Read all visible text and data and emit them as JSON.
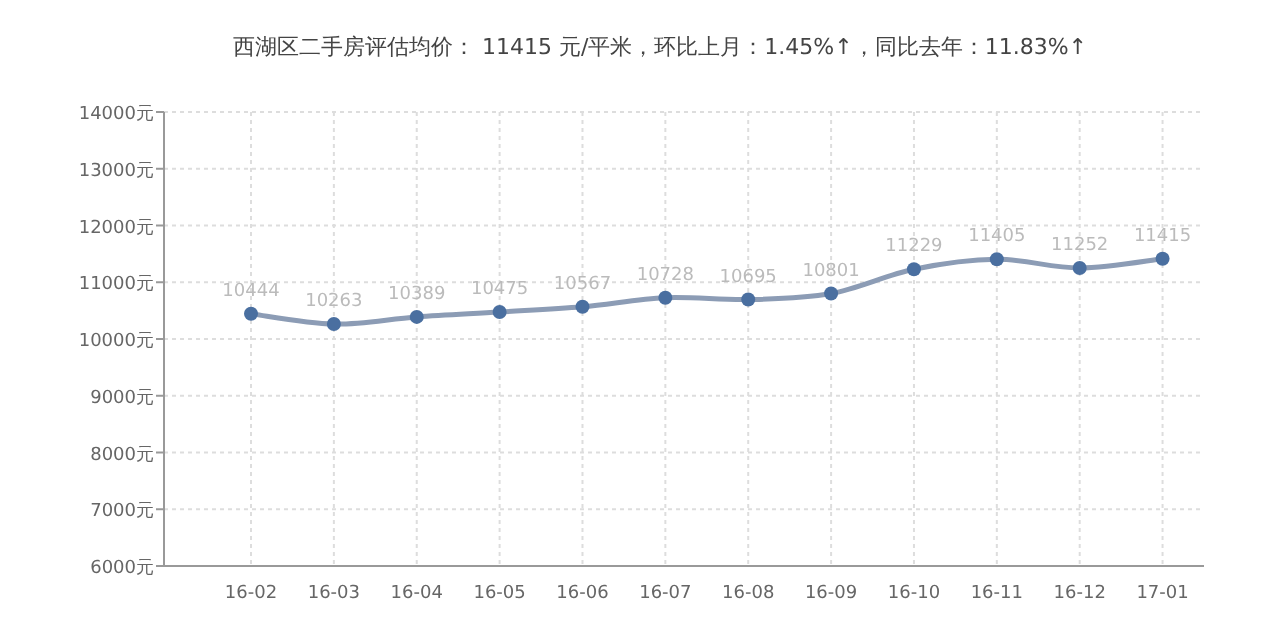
{
  "chart_data": {
    "type": "line",
    "title": "西湖区二手房评估均价： 11415 元/平米，环比上月：1.45%↑，同比去年：11.83%↑",
    "categories": [
      "16-02",
      "16-03",
      "16-04",
      "16-05",
      "16-06",
      "16-07",
      "16-08",
      "16-09",
      "16-10",
      "16-11",
      "16-12",
      "17-01"
    ],
    "series": [
      {
        "color": "#4a6fa0",
        "values": [
          10444,
          10263,
          10389,
          10475,
          10567,
          10728,
          10695,
          10801,
          11229,
          11405,
          11252,
          11415
        ]
      }
    ],
    "ylim": [
      6000,
      14000
    ],
    "yticks": [
      {
        "value": 6000,
        "label": "6000元"
      },
      {
        "value": 7000,
        "label": "7000元"
      },
      {
        "value": 8000,
        "label": "8000元"
      },
      {
        "value": 9000,
        "label": "9000元"
      },
      {
        "value": 10000,
        "label": "10000元"
      },
      {
        "value": 11000,
        "label": "11000元"
      },
      {
        "value": 12000,
        "label": "12000元"
      },
      {
        "value": 13000,
        "label": "13000元"
      },
      {
        "value": 14000,
        "label": "14000元"
      }
    ],
    "grid": true,
    "marker": "circle",
    "line_style": "solid",
    "data_labels": true
  }
}
